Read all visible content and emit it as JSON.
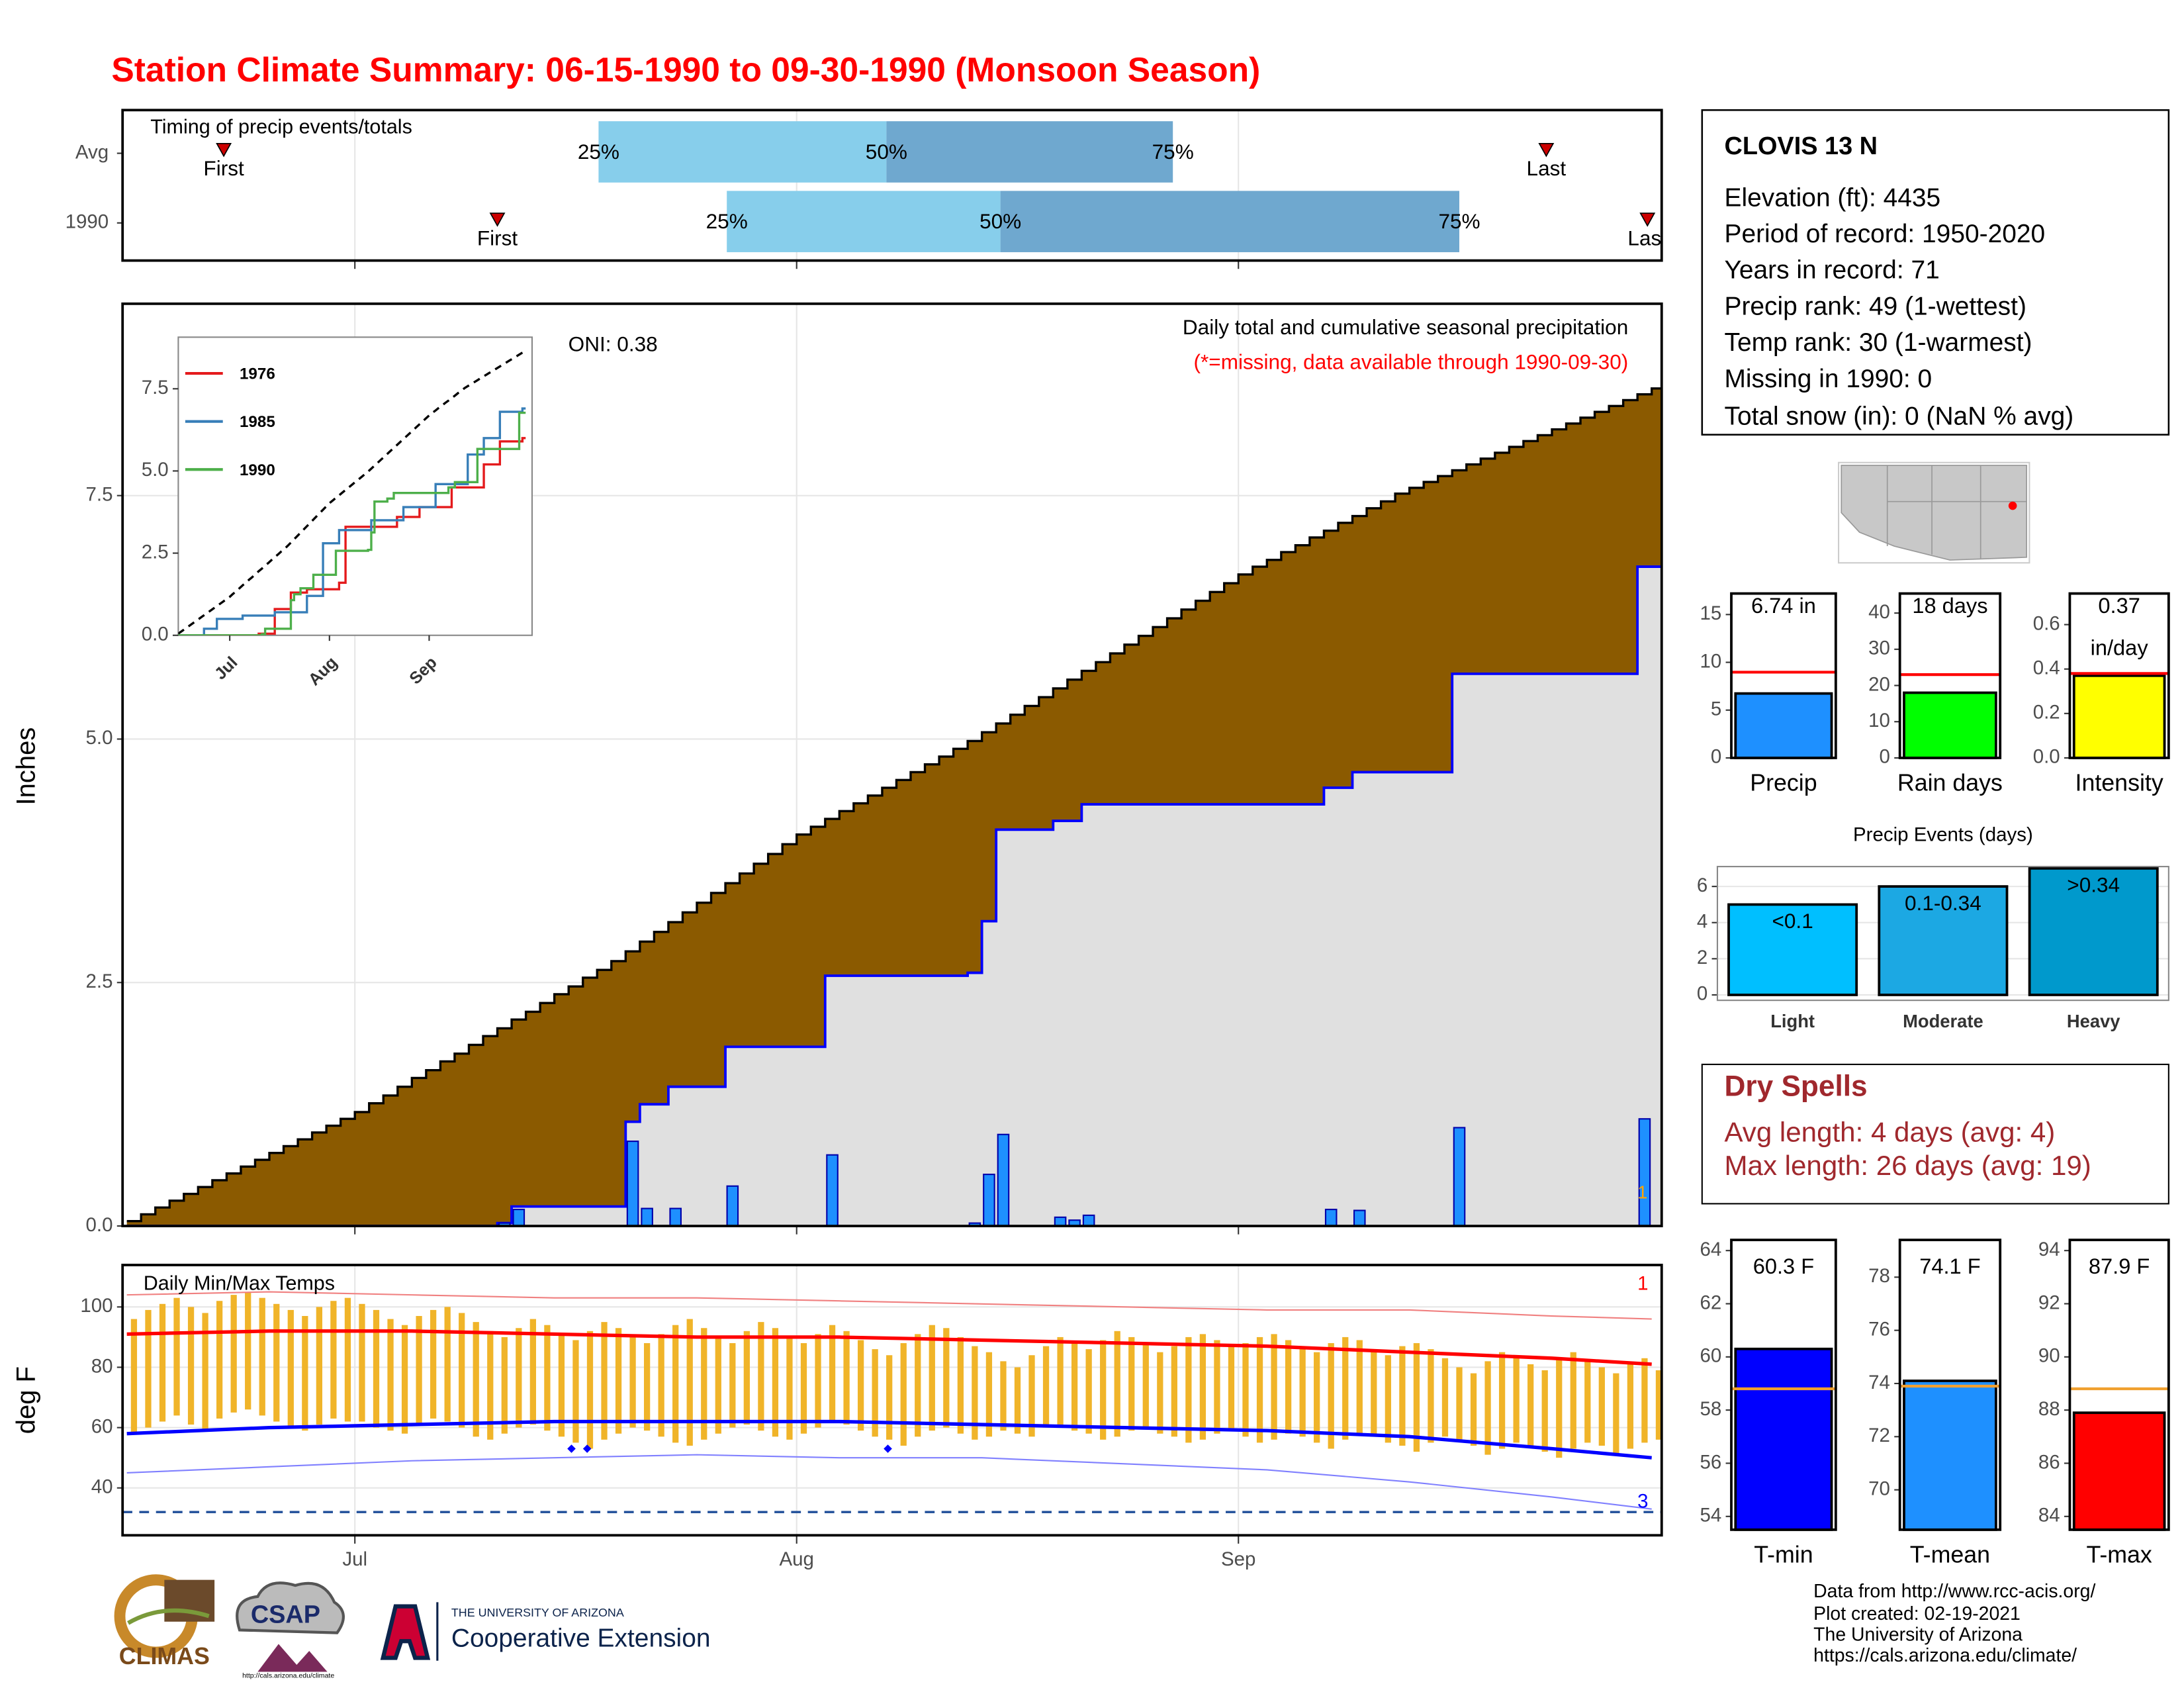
{
  "header": {
    "title": "Station Climate Summary: 06-15-1990 to 09-30-1990 (Monsoon Season)"
  },
  "station": {
    "name": "CLOVIS 13 N",
    "lines": [
      "Elevation (ft): 4435",
      "Period of record: 1950-2020",
      "Years in record: 71",
      "Precip rank: 49 (1-wettest)",
      "Temp rank: 30 (1-warmest)",
      "Missing in 1990: 0",
      "Total snow (in): 0 (NaN % avg)"
    ]
  },
  "dry_spells": {
    "title": "Dry Spells",
    "color": "#a0282d",
    "lines": [
      "Avg length: 4 days (avg: 4)",
      "Max length: 26 days (avg: 19)"
    ]
  },
  "footer": {
    "lines": [
      "Data from http://www.rcc-acis.org/",
      "Plot created: 02-19-2021",
      "The University of Arizona",
      "https://cals.arizona.edu/climate/"
    ]
  },
  "logos": {
    "climas": "CLIMAS",
    "csap": "CSAP",
    "csap_url": "http://cals.arizona.edu/climate",
    "university": "THE UNIVERSITY OF ARIZONA",
    "extension": "Cooperative Extension"
  },
  "chart_data": [
    {
      "type": "timeline",
      "title": "Timing of precip events/totals",
      "categories": [
        "Avg",
        "1990"
      ],
      "rows": [
        {
          "first": 6.8,
          "q25": 33.1,
          "q50": 53.3,
          "q75": 73.4,
          "last": 99.6
        },
        {
          "first": 26,
          "q25": 42.1,
          "q50": 61.3,
          "q75": 93.5,
          "last": 106.7
        }
      ],
      "labels": {
        "first": "First",
        "last": "Last",
        "q25": "25%",
        "q50": "50%",
        "q75": "75%"
      },
      "colors": {
        "early": "#87ceeb",
        "late": "#6fa8cf",
        "marker": "#cc0000"
      },
      "xlim": [
        -0.3,
        107.7
      ],
      "xticks": [
        16,
        47,
        78
      ],
      "grid": true
    },
    {
      "type": "step-area",
      "title": "Daily total and cumulative seasonal precipitation",
      "subtitle": "(*=missing, data available through 1990-09-30)",
      "annotation": "ONI: 0.38",
      "y_label": "Inches",
      "xlim": [
        -0.3,
        107.7
      ],
      "ylim": [
        0,
        9.47
      ],
      "xticks": [
        16,
        47,
        78
      ],
      "yticks": [
        {
          "value": 0,
          "label": "0.0"
        },
        2.5,
        {
          "value": 5,
          "label": "5.0"
        },
        7.5
      ],
      "grid": true,
      "cumulative_avg": {
        "color": "#8b5a00",
        "values": [
          0.05,
          0.12,
          0.19,
          0.26,
          0.33,
          0.4,
          0.47,
          0.54,
          0.61,
          0.68,
          0.75,
          0.82,
          0.89,
          0.96,
          1.03,
          1.1,
          1.17,
          1.26,
          1.34,
          1.43,
          1.52,
          1.6,
          1.69,
          1.77,
          1.86,
          1.95,
          2.03,
          2.12,
          2.2,
          2.29,
          2.38,
          2.46,
          2.55,
          2.63,
          2.72,
          2.82,
          2.92,
          3.02,
          3.12,
          3.22,
          3.32,
          3.42,
          3.52,
          3.62,
          3.72,
          3.82,
          3.92,
          4.02,
          4.1,
          4.18,
          4.26,
          4.34,
          4.42,
          4.5,
          4.58,
          4.66,
          4.74,
          4.82,
          4.9,
          4.98,
          5.07,
          5.16,
          5.25,
          5.34,
          5.43,
          5.52,
          5.61,
          5.7,
          5.79,
          5.88,
          5.97,
          6.06,
          6.15,
          6.24,
          6.33,
          6.42,
          6.51,
          6.6,
          6.69,
          6.77,
          6.84,
          6.92,
          6.99,
          7.07,
          7.14,
          7.22,
          7.29,
          7.37,
          7.44,
          7.52,
          7.58,
          7.64,
          7.7,
          7.76,
          7.82,
          7.88,
          7.94,
          8.0,
          8.06,
          8.12,
          8.18,
          8.24,
          8.3,
          8.36,
          8.42,
          8.48,
          8.54,
          8.6
        ]
      },
      "cumulative": {
        "color": "#0000ff",
        "fill": "#e0e0e0",
        "x": [
          0,
          26,
          27,
          35,
          36,
          38,
          42,
          49,
          59,
          60,
          61,
          65,
          67,
          84,
          86,
          93,
          106
        ],
        "values": [
          0,
          0.03,
          0.2,
          1.07,
          1.25,
          1.43,
          1.84,
          2.57,
          2.6,
          3.13,
          4.07,
          4.16,
          4.33,
          4.5,
          4.66,
          5.67,
          6.77
        ]
      },
      "daily": {
        "color": "#1e90ff",
        "x": [
          26,
          27,
          35,
          36,
          38,
          42,
          49,
          59,
          60,
          61,
          65,
          66,
          67,
          84,
          86,
          93,
          106
        ],
        "values": [
          0.03,
          0.17,
          0.87,
          0.18,
          0.18,
          0.41,
          0.73,
          0.03,
          0.53,
          0.94,
          0.09,
          0.06,
          0.11,
          0.17,
          0.16,
          1.01,
          1.1
        ]
      },
      "annotations": [
        {
          "text": "1",
          "x": 106,
          "y": 0.33,
          "color": "#ffa500"
        }
      ]
    },
    {
      "type": "line",
      "xlim": [
        0,
        110
      ],
      "ylim": [
        0,
        9.07
      ],
      "yticks": [
        {
          "value": 0,
          "label": "0.0"
        },
        2.5,
        {
          "value": 5,
          "label": "5.0"
        },
        7.5
      ],
      "xticks": [
        {
          "value": 16,
          "label": "Jul"
        },
        {
          "value": 47,
          "label": "Aug"
        },
        {
          "value": 78,
          "label": "Sep"
        }
      ],
      "series": [
        {
          "name": "1976",
          "color": "#e41a1c",
          "x": [
            0,
            25,
            30,
            35,
            40,
            50,
            52,
            62,
            68,
            75,
            85,
            95,
            100,
            107
          ],
          "values": [
            0,
            0.05,
            0.8,
            1.3,
            1.4,
            1.6,
            3.3,
            3.3,
            3.6,
            3.9,
            4.5,
            5.2,
            5.9,
            6.0
          ]
        },
        {
          "name": "1985",
          "color": "#377eb8",
          "x": [
            0,
            8,
            12,
            20,
            30,
            40,
            45,
            50,
            60,
            70,
            80,
            90,
            95,
            100,
            107
          ],
          "values": [
            0,
            0.2,
            0.5,
            0.6,
            0.7,
            1.2,
            2.8,
            3.2,
            3.5,
            3.9,
            4.6,
            5.5,
            6.0,
            6.8,
            6.9
          ]
        },
        {
          "name": "1990",
          "color": "#4daf4a",
          "x": [
            0,
            26,
            27,
            35,
            36,
            38,
            42,
            49,
            59,
            60,
            61,
            65,
            67,
            84,
            86,
            93,
            106
          ],
          "values": [
            0,
            0.03,
            0.2,
            1.07,
            1.25,
            1.43,
            1.84,
            2.57,
            2.6,
            3.13,
            4.07,
            4.16,
            4.33,
            4.5,
            4.66,
            5.67,
            6.77
          ]
        }
      ],
      "reference_color": "#000000"
    },
    {
      "type": "range",
      "title": "Daily Min/Max Temps",
      "y_label": "deg F",
      "xlim": [
        -0.3,
        107.7
      ],
      "ylim": [
        24.3,
        113.9
      ],
      "yticks": [
        40,
        60,
        80,
        100
      ],
      "xticks": [
        {
          "value": 16,
          "label": "Jul"
        },
        {
          "value": 47,
          "label": "Aug"
        },
        {
          "value": 78,
          "label": "Sep"
        }
      ],
      "grid": true,
      "bar_color": "#f0b429",
      "tmax": [
        96,
        99,
        101,
        103,
        100,
        98,
        102,
        104,
        105,
        103,
        101,
        99,
        97,
        100,
        102,
        103,
        101,
        99,
        96,
        94,
        97,
        99,
        100,
        98,
        95,
        92,
        90,
        93,
        96,
        94,
        91,
        89,
        92,
        95,
        93,
        90,
        88,
        91,
        94,
        96,
        93,
        90,
        88,
        92,
        95,
        93,
        90,
        88,
        91,
        94,
        92,
        89,
        86,
        84,
        88,
        91,
        94,
        93,
        90,
        87,
        85,
        82,
        80,
        84,
        87,
        90,
        88,
        86,
        89,
        92,
        90,
        88,
        85,
        87,
        90,
        91,
        89,
        87,
        88,
        90,
        91,
        89,
        87,
        85,
        88,
        90,
        89,
        86,
        84,
        87,
        88,
        86,
        83,
        80,
        78,
        82,
        85,
        84,
        81,
        79,
        83,
        85,
        82,
        80,
        78,
        81,
        83,
        79
      ],
      "tmin": [
        58,
        60,
        62,
        64,
        61,
        59,
        63,
        65,
        66,
        64,
        62,
        60,
        59,
        61,
        63,
        62,
        62,
        60,
        59,
        58,
        61,
        63,
        62,
        60,
        57,
        56,
        58,
        60,
        61,
        59,
        57,
        55,
        53,
        56,
        58,
        60,
        59,
        57,
        55,
        54,
        56,
        58,
        60,
        61,
        59,
        57,
        56,
        58,
        60,
        62,
        61,
        59,
        57,
        56,
        54,
        57,
        59,
        60,
        58,
        56,
        57,
        59,
        58,
        57,
        60,
        61,
        59,
        58,
        56,
        57,
        59,
        60,
        58,
        57,
        55,
        56,
        58,
        59,
        57,
        55,
        56,
        58,
        57,
        55,
        53,
        56,
        58,
        57,
        55,
        54,
        52,
        55,
        57,
        56,
        54,
        51,
        53,
        55,
        54,
        52,
        50,
        53,
        55,
        54,
        51,
        53,
        55,
        56
      ],
      "lines_x": [
        0,
        10,
        20,
        30,
        40,
        50,
        60,
        70,
        80,
        90,
        100,
        107
      ],
      "series": [
        {
          "color": "#f08080",
          "width": 1,
          "values": [
            104,
            105,
            104,
            103,
            103,
            102,
            101,
            100,
            99,
            99,
            97,
            96
          ]
        },
        {
          "color": "#ff0000",
          "width": 2.5,
          "values": [
            91,
            92,
            92,
            91,
            90,
            90,
            89,
            88,
            87,
            85,
            83,
            81
          ]
        },
        {
          "color": "#0000ff",
          "width": 2.5,
          "values": [
            58,
            60,
            61,
            62,
            62,
            62,
            61,
            60,
            59,
            57,
            53,
            50
          ]
        },
        {
          "color": "#8080ff",
          "width": 1,
          "values": [
            45,
            47,
            49,
            50,
            51,
            50,
            50,
            48,
            46,
            42,
            37,
            33
          ]
        }
      ],
      "reference": {
        "value": 32,
        "color": "#1f4e99"
      },
      "points": {
        "color": "#0000ff",
        "x": [
          31.2,
          32.3,
          53.4
        ],
        "values": [
          53,
          53,
          53
        ]
      },
      "annotations": [
        {
          "text": "1",
          "x": 106,
          "y": 107.4,
          "color": "#ff0000"
        },
        {
          "text": "3",
          "x": 106,
          "y": 35.2,
          "color": "#0000ff"
        }
      ]
    },
    {
      "type": "bar",
      "categories": [
        "Precip"
      ],
      "values": [
        6.74
      ],
      "value_labels": [
        "6.74 in"
      ],
      "color": "#1e90ff",
      "average": 8.97,
      "average_color": "#ff0000",
      "ylim": [
        0,
        17.2
      ],
      "yticks": [
        0,
        5,
        10,
        15
      ]
    },
    {
      "type": "bar",
      "categories": [
        "Rain days"
      ],
      "values": [
        18
      ],
      "value_labels": [
        "18 days"
      ],
      "color": "#00ff00",
      "average": 23,
      "average_color": "#ff0000",
      "ylim": [
        0,
        45.4
      ],
      "yticks": [
        0,
        10,
        20,
        30,
        40
      ]
    },
    {
      "type": "bar",
      "categories": [
        "Intensity"
      ],
      "values": [
        0.37
      ],
      "value_labels": [
        "0.37"
      ],
      "unit_label": "in/day",
      "color": "#ffff00",
      "average": 0.38,
      "average_color": "#ff0000",
      "ylim": [
        0,
        0.74
      ],
      "yticks": [
        {
          "value": 0,
          "label": "0.0"
        },
        0.2,
        0.4,
        0.6
      ]
    },
    {
      "type": "bar",
      "title": "Precip Events (days)",
      "categories": [
        "Light",
        "Moderate",
        "Heavy"
      ],
      "values": [
        5,
        6,
        7
      ],
      "bar_labels": [
        "<0.1",
        "0.1-0.34",
        ">0.34"
      ],
      "colors": [
        "#00bfff",
        "#1ca8e3",
        "#0099cc"
      ],
      "ylim": [
        -0.3,
        7.1
      ],
      "yticks": [
        0,
        2,
        4,
        6
      ],
      "grid": true
    },
    {
      "type": "bar",
      "categories": [
        "T-min"
      ],
      "values": [
        60.3
      ],
      "value_labels": [
        "60.3 F"
      ],
      "color": "#0000ff",
      "average": 58.8,
      "average_color": "#f0a030",
      "ylim": [
        53.5,
        64.4
      ],
      "yticks": [
        54,
        56,
        58,
        60,
        62,
        64
      ]
    },
    {
      "type": "bar",
      "categories": [
        "T-mean"
      ],
      "values": [
        74.1
      ],
      "value_labels": [
        "74.1 F"
      ],
      "color": "#1e90ff",
      "average": 73.9,
      "average_color": "#f0a030",
      "ylim": [
        68.5,
        79.4
      ],
      "yticks": [
        70,
        72,
        74,
        76,
        78
      ]
    },
    {
      "type": "bar",
      "categories": [
        "T-max"
      ],
      "values": [
        87.9
      ],
      "value_labels": [
        "87.9 F"
      ],
      "color": "#ff0000",
      "average": 88.8,
      "average_color": "#f0a030",
      "ylim": [
        83.5,
        94.4
      ],
      "yticks": [
        84,
        86,
        88,
        90,
        92,
        94
      ]
    }
  ]
}
